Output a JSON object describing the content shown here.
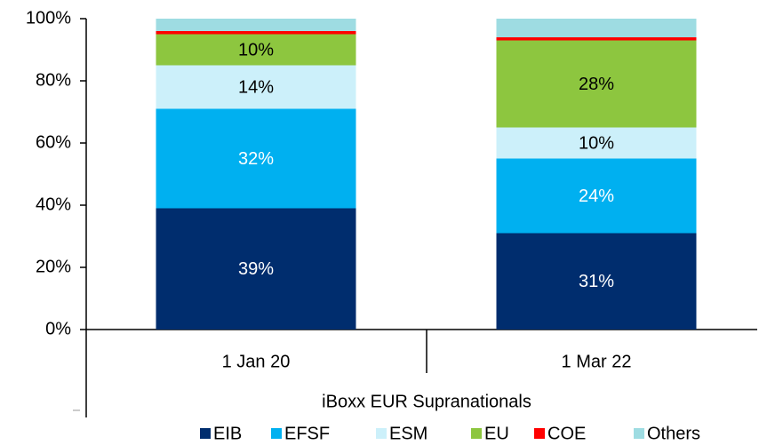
{
  "chart_data": {
    "type": "stacked_bar",
    "group_label": "iBoxx EUR Supranationals",
    "categories": [
      "1 Jan 20",
      "1 Mar 22"
    ],
    "series": [
      {
        "name": "EIB",
        "color": "#002d6e",
        "label_color": "#ffffff",
        "values": [
          39,
          31
        ],
        "value_labels": [
          "39%",
          "31%"
        ]
      },
      {
        "name": "EFSF",
        "color": "#00b0f0",
        "label_color": "#ffffff",
        "values": [
          32,
          24
        ],
        "value_labels": [
          "32%",
          "24%"
        ]
      },
      {
        "name": "ESM",
        "color": "#ccf0fa",
        "label_color": "#000000",
        "values": [
          14,
          10
        ],
        "value_labels": [
          "14%",
          "10%"
        ]
      },
      {
        "name": "EU",
        "color": "#8dc63f",
        "label_color": "#000000",
        "values": [
          10,
          28
        ],
        "value_labels": [
          "10%",
          "28%"
        ]
      },
      {
        "name": "COE",
        "color": "#ff0000",
        "values": [
          1,
          1
        ]
      },
      {
        "name": "Others",
        "color": "#9edce2",
        "values": [
          4,
          6
        ]
      }
    ],
    "ylim": [
      0,
      100
    ],
    "yticks": [
      {
        "value": 0,
        "label": "0%"
      },
      {
        "value": 20,
        "label": "20%"
      },
      {
        "value": 40,
        "label": "40%"
      },
      {
        "value": 60,
        "label": "60%"
      },
      {
        "value": 80,
        "label": "80%"
      },
      {
        "value": 100,
        "label": "100%"
      }
    ]
  }
}
